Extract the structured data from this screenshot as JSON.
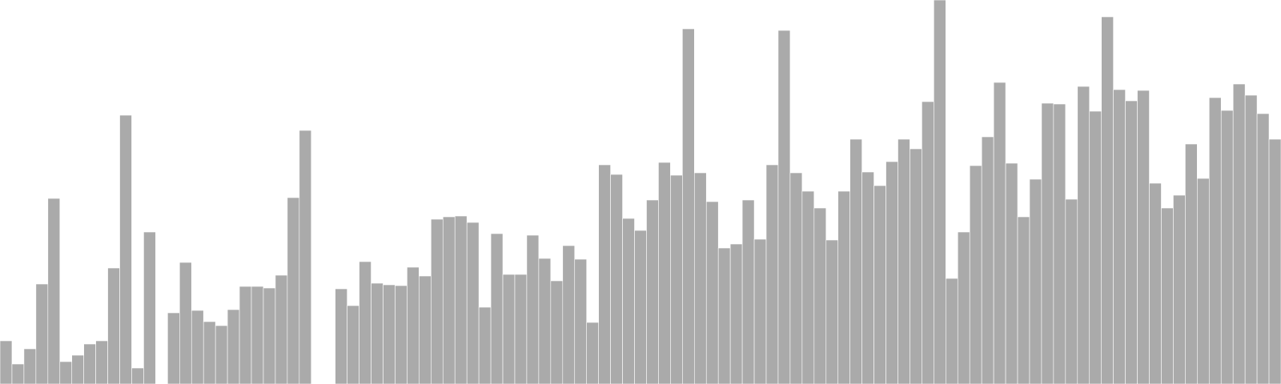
{
  "chart_data": {
    "type": "bar",
    "title": "",
    "xlabel": "",
    "ylabel": "",
    "grid": false,
    "legend": "none",
    "ylim": [
      0,
      480
    ],
    "bar_color": "#aaaaaa",
    "bar_stroke": "#ffffff",
    "background": "#ffffff",
    "values": [
      54,
      25,
      44,
      125,
      232,
      28,
      36,
      50,
      54,
      145,
      336,
      20,
      190,
      0,
      89,
      152,
      92,
      78,
      73,
      93,
      122,
      122,
      120,
      136,
      233,
      317,
      0,
      0,
      119,
      98,
      153,
      126,
      124,
      123,
      146,
      135,
      206,
      209,
      210,
      202,
      96,
      188,
      137,
      137,
      186,
      157,
      129,
      173,
      156,
      77,
      274,
      262,
      207,
      192,
      230,
      277,
      261,
      444,
      264,
      228,
      170,
      175,
      230,
      181,
      274,
      442,
      264,
      241,
      220,
      180,
      241,
      306,
      265,
      248,
      278,
      306,
      294,
      353,
      480,
      132,
      190,
      273,
      309,
      377,
      276,
      209,
      256,
      351,
      350,
      231,
      372,
      341,
      459,
      368,
      354,
      367,
      251,
      220,
      236,
      300,
      257,
      358,
      342,
      375,
      361,
      338,
      306
    ]
  }
}
